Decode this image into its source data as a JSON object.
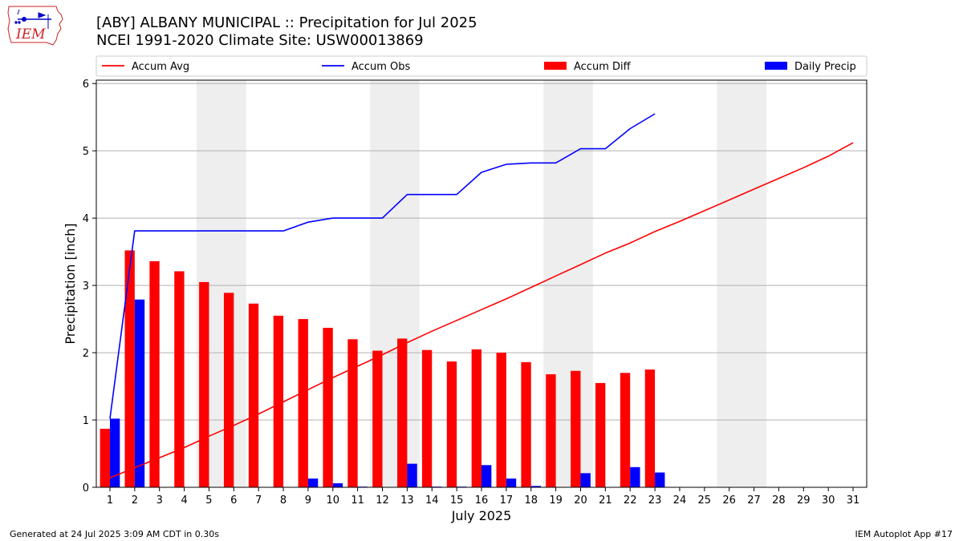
{
  "header": {
    "title_line1": "[ABY] ALBANY MUNICIPAL :: Precipitation for Jul 2025",
    "title_line2": "NCEI 1991-2020 Climate Site: USW00013869",
    "logo_text": "IEM"
  },
  "footer": {
    "generated": "Generated at 24 Jul 2025 3:09 AM CDT in 0.30s",
    "app": "IEM Autoplot App #17"
  },
  "colors": {
    "avg": "#ff0000",
    "obs": "#0000ff",
    "diff": "#ff0000",
    "daily": "#0000ff",
    "weekend": "#eeeeee",
    "grid": "#b0b0b0"
  },
  "chart_data": {
    "type": "bar",
    "xlabel": "July 2025",
    "ylabel": "Precipitation [inch]",
    "ylim": [
      0,
      6.05
    ],
    "yticks": [
      0,
      1,
      2,
      3,
      4,
      5,
      6
    ],
    "xticks": [
      1,
      2,
      3,
      4,
      5,
      6,
      7,
      8,
      9,
      10,
      11,
      12,
      13,
      14,
      15,
      16,
      17,
      18,
      19,
      20,
      21,
      22,
      23,
      24,
      25,
      26,
      27,
      28,
      29,
      30,
      31
    ],
    "grid": "y",
    "legend_position": "top",
    "legend": [
      "Accum Avg",
      "Accum Obs",
      "Accum Diff",
      "Daily Precip"
    ],
    "weekend_days": [
      5,
      6,
      12,
      13,
      19,
      20,
      26,
      27
    ],
    "series": [
      {
        "name": "Accum Avg",
        "kind": "line",
        "days": [
          1,
          2,
          3,
          4,
          5,
          6,
          7,
          8,
          9,
          10,
          11,
          12,
          13,
          14,
          15,
          16,
          17,
          18,
          19,
          20,
          21,
          22,
          23,
          24,
          25,
          26,
          27,
          28,
          29,
          30,
          31
        ],
        "values": [
          0.14,
          0.29,
          0.44,
          0.59,
          0.76,
          0.92,
          1.09,
          1.27,
          1.45,
          1.63,
          1.8,
          1.97,
          2.15,
          2.32,
          2.48,
          2.64,
          2.8,
          2.97,
          3.14,
          3.31,
          3.48,
          3.63,
          3.8,
          3.95,
          4.11,
          4.27,
          4.43,
          4.59,
          4.75,
          4.92,
          5.12
        ]
      },
      {
        "name": "Accum Obs",
        "kind": "line",
        "days": [
          1,
          2,
          3,
          4,
          5,
          6,
          7,
          8,
          9,
          10,
          11,
          12,
          13,
          14,
          15,
          16,
          17,
          18,
          19,
          20,
          21,
          22,
          23
        ],
        "values": [
          1.02,
          3.81,
          3.81,
          3.81,
          3.81,
          3.81,
          3.81,
          3.81,
          3.94,
          4.0,
          4.0,
          4.0,
          4.35,
          4.35,
          4.35,
          4.68,
          4.8,
          4.82,
          4.82,
          5.03,
          5.03,
          5.33,
          5.55
        ]
      },
      {
        "name": "Accum Diff",
        "kind": "bar",
        "days": [
          1,
          2,
          3,
          4,
          5,
          6,
          7,
          8,
          9,
          10,
          11,
          12,
          13,
          14,
          15,
          16,
          17,
          18,
          19,
          20,
          21,
          22,
          23
        ],
        "values": [
          0.87,
          3.52,
          3.36,
          3.21,
          3.05,
          2.89,
          2.73,
          2.55,
          2.5,
          2.37,
          2.2,
          2.03,
          2.21,
          2.04,
          1.87,
          2.05,
          2.0,
          1.86,
          1.68,
          1.73,
          1.55,
          1.7,
          1.75
        ]
      },
      {
        "name": "Daily Precip",
        "kind": "bar",
        "days": [
          1,
          2,
          3,
          4,
          5,
          6,
          7,
          8,
          9,
          10,
          11,
          12,
          13,
          14,
          15,
          16,
          17,
          18,
          19,
          20,
          21,
          22,
          23
        ],
        "values": [
          1.02,
          2.79,
          0,
          0,
          0,
          0,
          0,
          0,
          0.13,
          0.06,
          0.01,
          0,
          0.35,
          0.01,
          0.01,
          0.33,
          0.13,
          0.02,
          0,
          0.21,
          0,
          0.3,
          0.22
        ]
      }
    ]
  }
}
